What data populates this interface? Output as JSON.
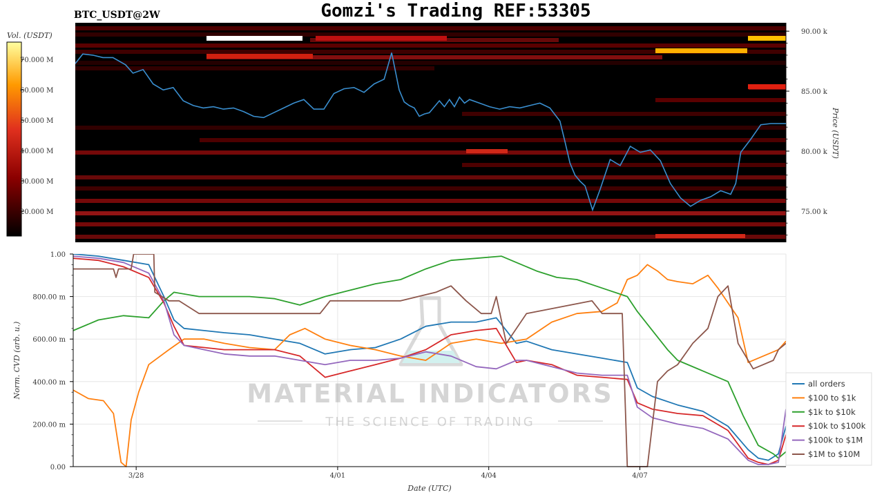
{
  "title": "Gomzi's Trading REF:53305",
  "pair_label": "BTC_USDT@2W",
  "watermark": {
    "brand": "MATERIAL INDICATORS",
    "tagline": "THE SCIENCE OF TRADING"
  },
  "colors": {
    "heatmap_bg": "#000000",
    "price_line": "#3a8fd0",
    "all_orders": "#1f77b4",
    "usd100_1k": "#ff7f0e",
    "usd1k_10k": "#2ca02c",
    "usd10k_100k": "#d62728",
    "usd100k_1m": "#9467bd",
    "usd1m_10m": "#8c564b"
  },
  "chart_data": [
    {
      "type": "heatmap",
      "colorbar": {
        "label": "Vol. (USDT)",
        "ticks": [
          "70.000 M",
          "60.000 M",
          "50.000 M",
          "40.000 M",
          "30.000 M",
          "20.000 M"
        ]
      },
      "y_axis": {
        "label": "Price (USDT)",
        "ticks": [
          "90.00 k",
          "85.00 k",
          "80.00 k",
          "75.00 k"
        ],
        "tick_values": [
          90000,
          85000,
          80000,
          75000
        ],
        "range": [
          72400,
          90700
        ]
      },
      "price_series": {
        "x_days": [
          0,
          0.15,
          0.35,
          0.55,
          0.75,
          1.0,
          1.15,
          1.35,
          1.55,
          1.75,
          1.95,
          2.15,
          2.35,
          2.55,
          2.75,
          2.95,
          3.15,
          3.35,
          3.55,
          3.75,
          3.95,
          4.15,
          4.35,
          4.55,
          4.75,
          4.95,
          5.15,
          5.35,
          5.55,
          5.75,
          5.95,
          6.15,
          6.3,
          6.45,
          6.55,
          6.65,
          6.75,
          6.85,
          6.95,
          7.05,
          7.15,
          7.25,
          7.35,
          7.45,
          7.55,
          7.65,
          7.75,
          7.85,
          8.05,
          8.25,
          8.45,
          8.65,
          8.85,
          9.05,
          9.25,
          9.45,
          9.65,
          9.75,
          9.85,
          9.95,
          10.05,
          10.15,
          10.3,
          10.45,
          10.65,
          10.85,
          11.05,
          11.25,
          11.45,
          11.65,
          11.85,
          12.05,
          12.25,
          12.45,
          12.65,
          12.85,
          13.05,
          13.15,
          13.25,
          13.45,
          13.65,
          13.85,
          14.05,
          14.15
        ],
        "price": [
          87300,
          88100,
          88000,
          87800,
          87800,
          87200,
          86500,
          86800,
          85600,
          85100,
          85300,
          84200,
          83800,
          83600,
          83700,
          83500,
          83600,
          83300,
          82900,
          82800,
          83200,
          83600,
          84000,
          84300,
          83500,
          83500,
          84800,
          85200,
          85300,
          84900,
          85600,
          86000,
          88200,
          85100,
          84100,
          83800,
          83600,
          82900,
          83100,
          83200,
          83700,
          84200,
          83700,
          84300,
          83700,
          84500,
          84000,
          84300,
          84000,
          83700,
          83500,
          83700,
          83600,
          83800,
          84000,
          83600,
          82500,
          80800,
          79000,
          78000,
          77500,
          77100,
          75100,
          76800,
          79300,
          78800,
          80400,
          79900,
          80100,
          79200,
          77300,
          76100,
          75400,
          75900,
          76200,
          76700,
          76400,
          77300,
          79900,
          81000,
          82200,
          82300,
          82300,
          82300
        ]
      }
    },
    {
      "type": "line",
      "xlabel": "Date (UTC)",
      "ylabel": "Norm. CVD (arb. u.)",
      "x_ticks": [
        "3/28",
        "4/01",
        "4/04",
        "4/07"
      ],
      "x_tick_days": [
        1.25,
        5.25,
        8.25,
        11.25
      ],
      "x_range": [
        0,
        14.15
      ],
      "y_ticks": [
        "1.00",
        "800.00 m",
        "600.00 m",
        "400.00 m",
        "200.00 m",
        "0.00"
      ],
      "y_tick_values": [
        1.0,
        0.8,
        0.6,
        0.4,
        0.2,
        0.0
      ],
      "ylim": [
        0,
        1
      ],
      "grid": true,
      "legend_position": "right",
      "series": [
        {
          "name": "all orders",
          "x": [
            0,
            0.5,
            1.0,
            1.5,
            1.8,
            2.0,
            2.2,
            2.6,
            3.0,
            3.5,
            4.0,
            4.5,
            5.0,
            5.5,
            6.0,
            6.5,
            7.0,
            7.5,
            8.0,
            8.4,
            8.8,
            9.0,
            9.5,
            10.0,
            10.5,
            11.0,
            11.2,
            11.5,
            12.0,
            12.5,
            13.0,
            13.4,
            13.6,
            13.8,
            14.0,
            14.15
          ],
          "y": [
            1.0,
            0.99,
            0.97,
            0.95,
            0.8,
            0.69,
            0.65,
            0.64,
            0.63,
            0.62,
            0.6,
            0.58,
            0.53,
            0.55,
            0.56,
            0.6,
            0.66,
            0.68,
            0.68,
            0.7,
            0.58,
            0.59,
            0.55,
            0.53,
            0.51,
            0.49,
            0.37,
            0.33,
            0.29,
            0.26,
            0.19,
            0.08,
            0.04,
            0.03,
            0.06,
            0.19
          ]
        },
        {
          "name": "$100 to $1k",
          "x": [
            0,
            0.3,
            0.6,
            0.8,
            0.95,
            1.05,
            1.15,
            1.3,
            1.5,
            1.9,
            2.2,
            2.6,
            3.0,
            3.5,
            4.0,
            4.3,
            4.6,
            5.0,
            5.5,
            6.0,
            6.5,
            7.0,
            7.5,
            8.0,
            8.5,
            9.0,
            9.5,
            10.0,
            10.5,
            10.8,
            11.0,
            11.2,
            11.4,
            11.6,
            11.8,
            12.0,
            12.3,
            12.6,
            12.8,
            13.2,
            13.4,
            13.7,
            14.0,
            14.15
          ],
          "y": [
            0.36,
            0.32,
            0.31,
            0.25,
            0.02,
            0.0,
            0.22,
            0.35,
            0.48,
            0.55,
            0.6,
            0.6,
            0.58,
            0.56,
            0.55,
            0.62,
            0.65,
            0.6,
            0.57,
            0.55,
            0.52,
            0.5,
            0.58,
            0.6,
            0.58,
            0.6,
            0.68,
            0.72,
            0.73,
            0.77,
            0.88,
            0.9,
            0.95,
            0.92,
            0.88,
            0.87,
            0.86,
            0.9,
            0.84,
            0.7,
            0.49,
            0.52,
            0.55,
            0.59
          ]
        },
        {
          "name": "$1k to $10k",
          "x": [
            0,
            0.5,
            1.0,
            1.5,
            1.8,
            2.0,
            2.5,
            3.0,
            3.5,
            4.0,
            4.5,
            5.0,
            5.5,
            6.0,
            6.5,
            7.0,
            7.5,
            8.0,
            8.5,
            8.8,
            9.2,
            9.6,
            10.0,
            10.5,
            11.0,
            11.2,
            11.5,
            11.8,
            12.0,
            12.5,
            13.0,
            13.3,
            13.6,
            13.9,
            14.0,
            14.15
          ],
          "y": [
            0.64,
            0.69,
            0.71,
            0.7,
            0.78,
            0.82,
            0.8,
            0.8,
            0.8,
            0.79,
            0.76,
            0.8,
            0.83,
            0.86,
            0.88,
            0.93,
            0.97,
            0.98,
            0.99,
            0.96,
            0.92,
            0.89,
            0.88,
            0.84,
            0.8,
            0.73,
            0.64,
            0.55,
            0.5,
            0.45,
            0.4,
            0.24,
            0.1,
            0.06,
            0.04,
            0.07
          ]
        },
        {
          "name": "$10k to $100k",
          "x": [
            0,
            0.5,
            1.0,
            1.5,
            1.8,
            2.0,
            2.2,
            2.6,
            3.0,
            3.5,
            4.0,
            4.5,
            5.0,
            5.5,
            6.0,
            6.5,
            7.0,
            7.5,
            8.0,
            8.4,
            8.8,
            9.0,
            9.5,
            10.0,
            10.5,
            11.0,
            11.2,
            11.5,
            12.0,
            12.5,
            13.0,
            13.4,
            13.6,
            13.8,
            14.0,
            14.15
          ],
          "y": [
            0.98,
            0.97,
            0.94,
            0.89,
            0.77,
            0.66,
            0.57,
            0.56,
            0.55,
            0.55,
            0.55,
            0.52,
            0.42,
            0.45,
            0.48,
            0.51,
            0.55,
            0.62,
            0.64,
            0.65,
            0.49,
            0.5,
            0.48,
            0.43,
            0.42,
            0.41,
            0.3,
            0.27,
            0.25,
            0.24,
            0.17,
            0.04,
            0.02,
            0.01,
            0.03,
            0.15
          ]
        },
        {
          "name": "$100k to $1M",
          "x": [
            0,
            0.5,
            1.0,
            1.5,
            1.8,
            2.0,
            2.2,
            2.6,
            3.0,
            3.5,
            4.0,
            4.5,
            5.0,
            5.5,
            6.0,
            6.5,
            7.0,
            7.5,
            8.0,
            8.4,
            8.8,
            9.0,
            9.5,
            10.0,
            10.5,
            11.0,
            11.2,
            11.5,
            12.0,
            12.5,
            13.0,
            13.4,
            13.6,
            13.8,
            14.0,
            14.15
          ],
          "y": [
            0.99,
            0.98,
            0.96,
            0.91,
            0.78,
            0.62,
            0.57,
            0.55,
            0.53,
            0.52,
            0.52,
            0.5,
            0.48,
            0.5,
            0.5,
            0.51,
            0.54,
            0.52,
            0.47,
            0.46,
            0.5,
            0.5,
            0.47,
            0.44,
            0.43,
            0.43,
            0.28,
            0.23,
            0.2,
            0.18,
            0.13,
            0.03,
            0.01,
            0.01,
            0.02,
            0.27
          ]
        },
        {
          "name": "$1M to $10M",
          "x": [
            0,
            0.8,
            0.85,
            0.9,
            1.0,
            1.15,
            1.2,
            1.6,
            1.62,
            1.9,
            2.1,
            2.5,
            3.0,
            4.0,
            4.9,
            5.1,
            5.8,
            6.5,
            7.2,
            7.5,
            7.8,
            8.1,
            8.3,
            8.4,
            8.6,
            9.0,
            10.3,
            10.5,
            10.9,
            11.0,
            11.2,
            11.4,
            11.6,
            11.8,
            12.0,
            12.3,
            12.6,
            12.8,
            13.0,
            13.2,
            13.5,
            13.7,
            13.9,
            14.0,
            14.15
          ],
          "y": [
            0.93,
            0.93,
            0.89,
            0.93,
            0.93,
            0.93,
            1.0,
            1.0,
            0.82,
            0.78,
            0.78,
            0.72,
            0.72,
            0.72,
            0.72,
            0.78,
            0.78,
            0.78,
            0.82,
            0.85,
            0.78,
            0.72,
            0.72,
            0.8,
            0.58,
            0.72,
            0.78,
            0.72,
            0.72,
            0.0,
            0.0,
            0.0,
            0.4,
            0.45,
            0.48,
            0.58,
            0.65,
            0.8,
            0.85,
            0.58,
            0.46,
            0.48,
            0.5,
            0.55,
            0.58
          ]
        }
      ]
    }
  ]
}
